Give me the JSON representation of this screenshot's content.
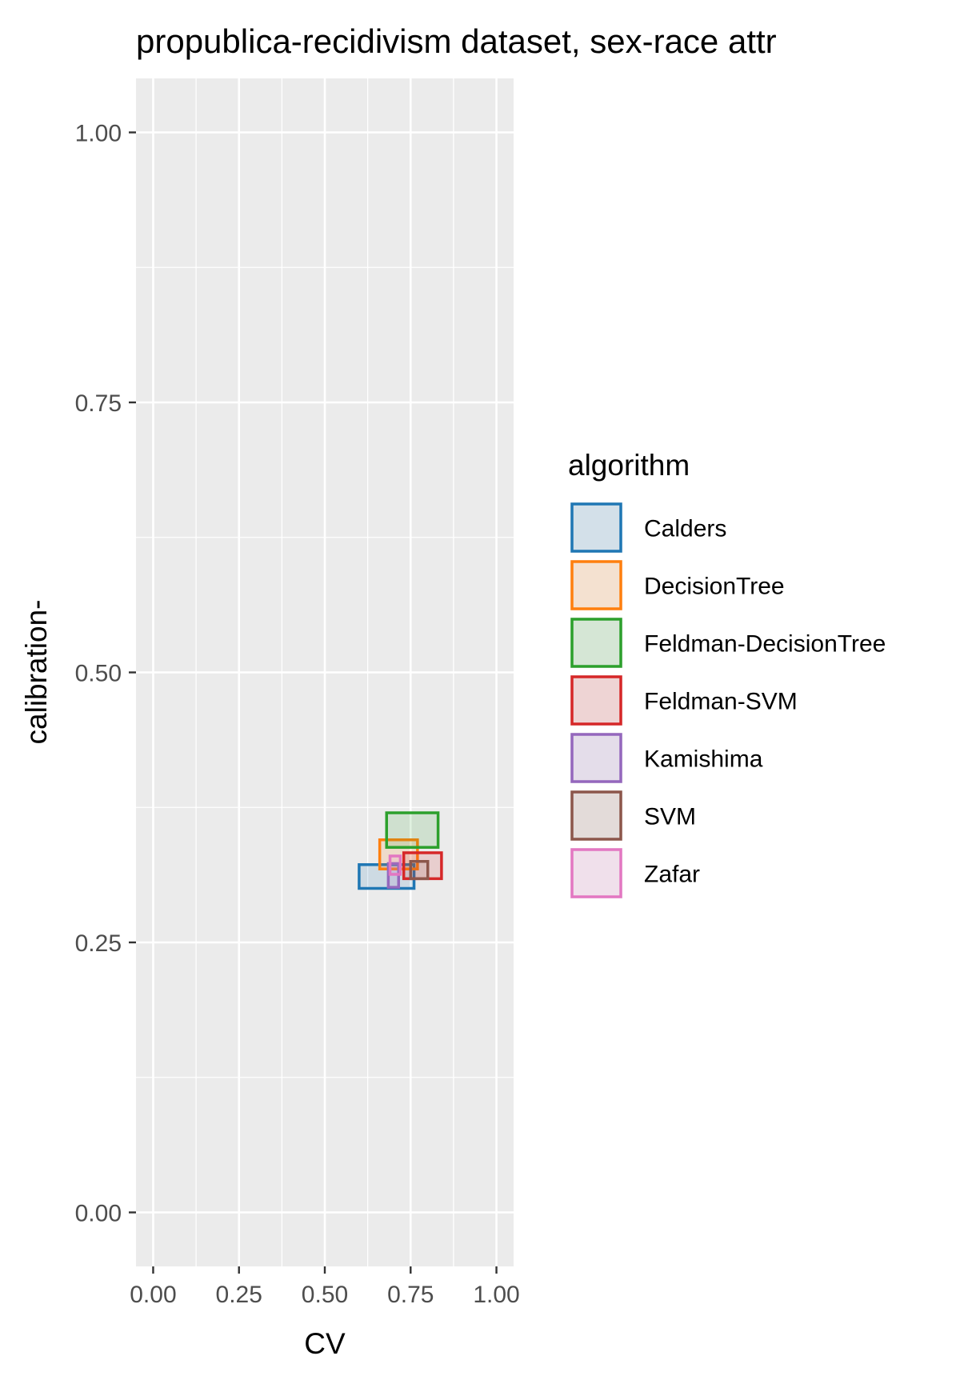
{
  "chart_data": {
    "type": "box-rect",
    "title": "propublica-recidivism dataset, sex-race attr",
    "xlabel": "CV",
    "ylabel": "calibration-",
    "xlim": [
      -0.05,
      1.05
    ],
    "ylim": [
      -0.05,
      1.05
    ],
    "x_ticks": [
      {
        "value": 0.0,
        "label": "0.00"
      },
      {
        "value": 0.25,
        "label": "0.25"
      },
      {
        "value": 0.5,
        "label": "0.50"
      },
      {
        "value": 0.75,
        "label": "0.75"
      },
      {
        "value": 1.0,
        "label": "1.00"
      }
    ],
    "y_ticks": [
      {
        "value": 0.0,
        "label": "0.00"
      },
      {
        "value": 0.25,
        "label": "0.25"
      },
      {
        "value": 0.5,
        "label": "0.50"
      },
      {
        "value": 0.75,
        "label": "0.75"
      },
      {
        "value": 1.0,
        "label": "1.00"
      }
    ],
    "grid": true,
    "legend": {
      "title": "algorithm",
      "placement": "right"
    },
    "series": [
      {
        "name": "Calders",
        "color": "#1f77b4",
        "xmin": 0.6,
        "xmax": 0.76,
        "ymin": 0.3,
        "ymax": 0.322
      },
      {
        "name": "DecisionTree",
        "color": "#ff7f0e",
        "xmin": 0.66,
        "xmax": 0.77,
        "ymin": 0.318,
        "ymax": 0.345
      },
      {
        "name": "Feldman-DecisionTree",
        "color": "#2ca02c",
        "xmin": 0.68,
        "xmax": 0.83,
        "ymin": 0.338,
        "ymax": 0.37
      },
      {
        "name": "Feldman-SVM",
        "color": "#d62728",
        "xmin": 0.73,
        "xmax": 0.84,
        "ymin": 0.309,
        "ymax": 0.333
      },
      {
        "name": "Kamishima",
        "color": "#9467bd",
        "xmin": 0.685,
        "xmax": 0.715,
        "ymin": 0.301,
        "ymax": 0.323
      },
      {
        "name": "SVM",
        "color": "#8c564b",
        "xmin": 0.75,
        "xmax": 0.8,
        "ymin": 0.309,
        "ymax": 0.325
      },
      {
        "name": "Zafar",
        "color": "#e377c2",
        "xmin": 0.69,
        "xmax": 0.72,
        "ymin": 0.313,
        "ymax": 0.33
      }
    ]
  }
}
